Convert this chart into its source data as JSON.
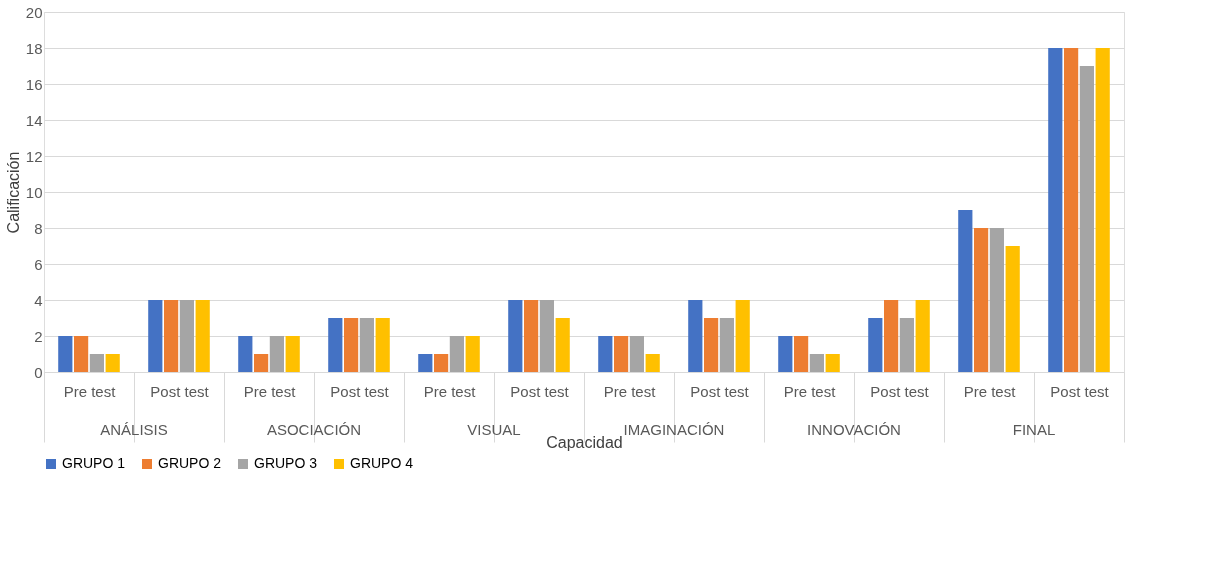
{
  "chart_data": {
    "type": "bar",
    "xlabel": "Capacidad",
    "ylabel": "Calificación",
    "categories": [
      "Pre test",
      "Post test",
      "Pre test",
      "Post test",
      "Pre test",
      "Post test",
      "Pre test",
      "Post test",
      "Pre test",
      "Post test",
      "Pre test",
      "Post test"
    ],
    "annotations": [
      "ANÁLISIS",
      "ASOCIACIÓN",
      "VISUAL",
      "IMAGINACIÓN",
      "INNOVACIÓN",
      "FINAL"
    ],
    "series": [
      {
        "name": "GRUPO 1",
        "color": "#4472c4",
        "values": [
          2,
          4,
          2,
          3,
          1,
          4,
          2,
          4,
          2,
          3,
          9,
          18
        ]
      },
      {
        "name": "GRUPO 2",
        "color": "#ed7d31",
        "values": [
          2,
          4,
          1,
          3,
          1,
          4,
          2,
          3,
          2,
          4,
          8,
          18
        ]
      },
      {
        "name": "GRUPO 3",
        "color": "#a5a5a5",
        "values": [
          1,
          4,
          2,
          3,
          2,
          4,
          2,
          3,
          1,
          3,
          8,
          17
        ]
      },
      {
        "name": "GRUPO 4",
        "color": "#ffc000",
        "values": [
          1,
          4,
          2,
          3,
          2,
          3,
          1,
          4,
          1,
          4,
          7,
          18
        ]
      }
    ],
    "ylim": [
      0,
      20
    ],
    "yticks": [
      0,
      2,
      4,
      6,
      8,
      10,
      12,
      14,
      16,
      18,
      20
    ],
    "grid": "y",
    "legend": "bottom"
  }
}
